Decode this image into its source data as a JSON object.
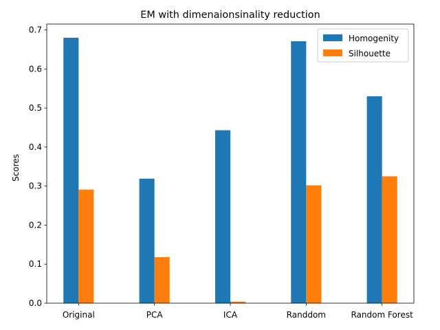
{
  "chart_data": {
    "type": "bar",
    "title": "EM with dimenaionsinality reduction",
    "xlabel": "",
    "ylabel": "Scores",
    "categories": [
      "Original",
      "PCA",
      "ICA",
      "Randdom",
      "Random Forest"
    ],
    "series": [
      {
        "name": "Homogenity",
        "color": "#1f77b4",
        "values": [
          0.68,
          0.319,
          0.443,
          0.671,
          0.53
        ]
      },
      {
        "name": "Silhouette",
        "color": "#ff7f0e",
        "values": [
          0.291,
          0.118,
          0.004,
          0.302,
          0.325
        ]
      }
    ],
    "ylim": [
      0,
      0.715
    ],
    "yticks": [
      "0.0",
      "0.1",
      "0.2",
      "0.3",
      "0.4",
      "0.5",
      "0.6",
      "0.7"
    ],
    "grid": false,
    "legend": "top-right"
  }
}
